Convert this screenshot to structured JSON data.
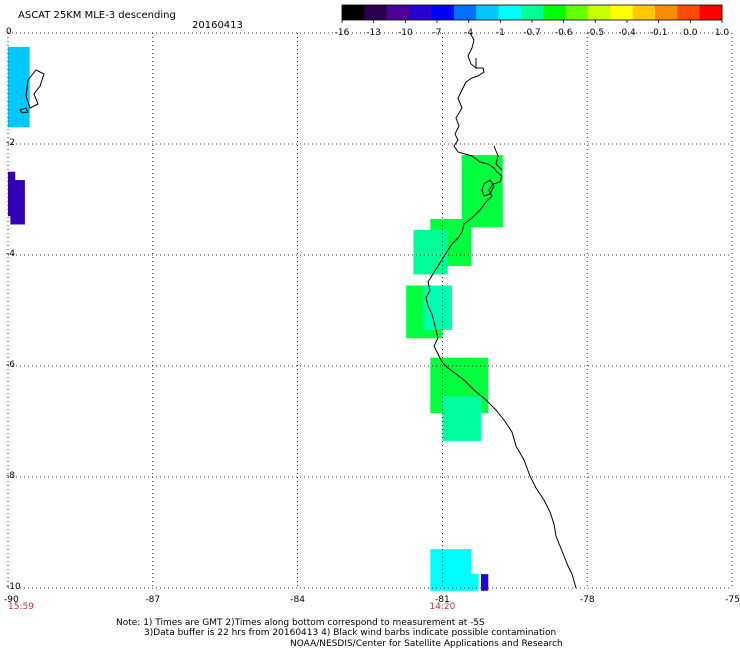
{
  "header": {
    "title": "ASCAT 25KM MLE-3 descending",
    "date": "20160413"
  },
  "colorbar": {
    "labels": [
      "-16",
      "-13",
      "-10",
      "-7",
      "-4",
      "-1",
      "-0.7",
      "-0.6",
      "-0.5",
      "-0.4",
      "-0.1",
      "0.0",
      "1.0"
    ],
    "colors": [
      "#000000",
      "#2a0050",
      "#4b0096",
      "#2a00d0",
      "#0000ff",
      "#0070ff",
      "#00c8ff",
      "#00ffff",
      "#00ff96",
      "#00ff00",
      "#64ff00",
      "#c8ff00",
      "#ffff00",
      "#ffc800",
      "#ff8c00",
      "#ff4b00",
      "#ff0000"
    ]
  },
  "axes": {
    "lon_labels": [
      "-90",
      "-87",
      "-84",
      "-81",
      "-78",
      "-75"
    ],
    "lon_values": [
      -90,
      -87,
      -84,
      -81,
      -78,
      -75
    ],
    "lat_labels": [
      "0",
      "-2",
      "-4",
      "-6",
      "-8",
      "-10"
    ],
    "lat_values": [
      0,
      -2,
      -4,
      -6,
      -8,
      -10
    ],
    "lon_range": [
      -90,
      -75
    ],
    "lat_range": [
      -10,
      0
    ]
  },
  "times": [
    {
      "label": "15:59",
      "lon": -90
    },
    {
      "label": "14:20",
      "lon": -81
    }
  ],
  "patches": [
    {
      "lon": [
        -90,
        -89.55
      ],
      "lat": [
        -0.25,
        -1.7
      ],
      "color": "#00c8ff"
    },
    {
      "lon": [
        -89.95,
        -89.65
      ],
      "lat": [
        -2.65,
        -3.45
      ],
      "color": "#3200b4"
    },
    {
      "lon": [
        -90,
        -89.85
      ],
      "lat": [
        -2.5,
        -3.3
      ],
      "color": "#3200b4"
    },
    {
      "lon": [
        -80.6,
        -79.75
      ],
      "lat": [
        -2.2,
        -3.5
      ],
      "color": "#00ff3c"
    },
    {
      "lon": [
        -81.25,
        -80.4
      ],
      "lat": [
        -3.35,
        -4.2
      ],
      "color": "#00ff3c"
    },
    {
      "lon": [
        -81.6,
        -80.9
      ],
      "lat": [
        -3.55,
        -4.35
      ],
      "color": "#00ff96"
    },
    {
      "lon": [
        -81.75,
        -81.0
      ],
      "lat": [
        -4.55,
        -5.5
      ],
      "color": "#00ff3c"
    },
    {
      "lon": [
        -81.4,
        -80.8
      ],
      "lat": [
        -4.55,
        -5.35
      ],
      "color": "#00ffb0"
    },
    {
      "lon": [
        -81.25,
        -80.05
      ],
      "lat": [
        -5.85,
        -6.85
      ],
      "color": "#00ff3c"
    },
    {
      "lon": [
        -81.0,
        -80.2
      ],
      "lat": [
        -6.55,
        -7.35
      ],
      "color": "#00ffa0"
    },
    {
      "lon": [
        -81.25,
        -80.4
      ],
      "lat": [
        -9.3,
        -10.05
      ],
      "color": "#00ffff"
    },
    {
      "lon": [
        -81.0,
        -80.25
      ],
      "lat": [
        -9.75,
        -10.05
      ],
      "color": "#00ffff"
    },
    {
      "lon": [
        -80.2,
        -80.05
      ],
      "lat": [
        -9.75,
        -10.05
      ],
      "color": "#2a00e0"
    }
  ],
  "notes": [
    "Note: 1) Times are GMT 2)Times along bottom correspond to measurement at -5S",
    "3)Data buffer is 22 hrs from 20160413 4) Black wind barbs indicate possible contamination",
    "NOAA/NESDIS/Center for Satellite Applications and Research"
  ]
}
